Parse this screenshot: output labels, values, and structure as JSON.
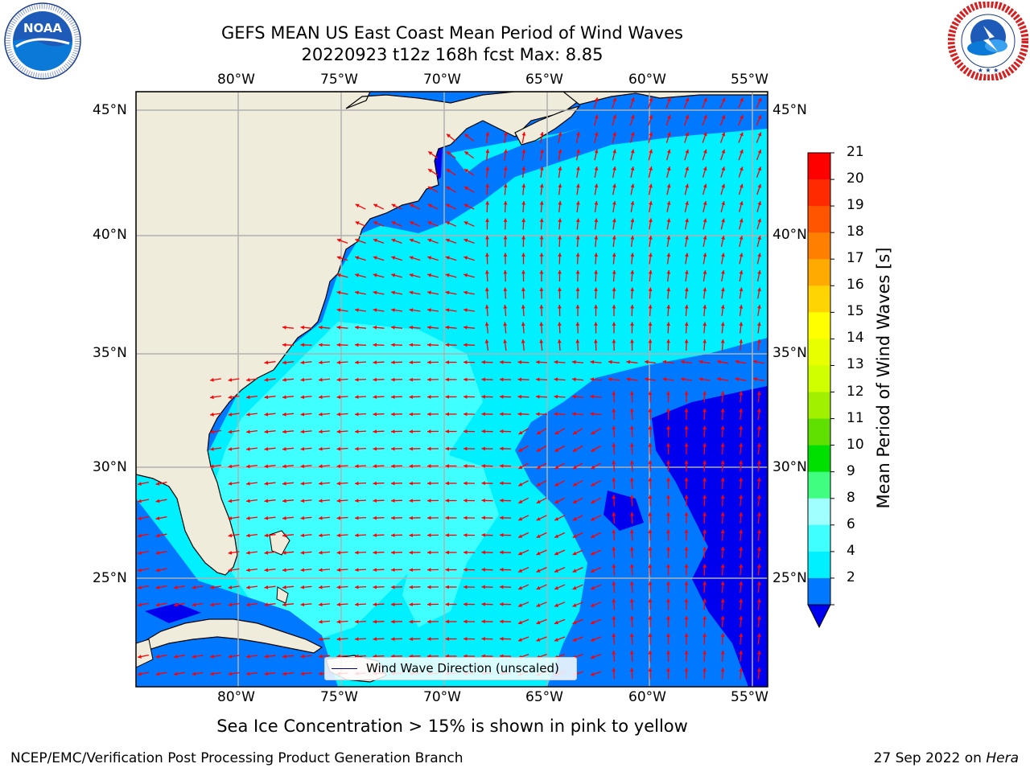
{
  "header": {
    "title": "GEFS MEAN US East Coast Mean Period of Wind Waves",
    "subtitle": "20220923 t12z 168h fcst   Max: 8.85"
  },
  "logos": {
    "left": {
      "name": "noaa-logo",
      "text": "NOAA",
      "ring_text": "NATIONAL OCEANIC AND ATMOSPHERIC ADMINISTRATION · U.S. DEPARTMENT OF COMMERCE"
    },
    "right": {
      "name": "nws-logo",
      "ring_text": "NATIONAL WEATHER SERVICE"
    }
  },
  "map": {
    "lon_labels": [
      "80°W",
      "75°W",
      "70°W",
      "65°W",
      "60°W",
      "55°W"
    ],
    "lat_labels": [
      "45°N",
      "40°N",
      "35°N",
      "30°N",
      "25°N"
    ],
    "legend_label": "Wind Wave Direction (unscaled)",
    "colors": {
      "land": "#efecdc",
      "ocean_0_2": "#0000ee",
      "ocean_2_4": "#0078ff",
      "ocean_4_6": "#00f0ff",
      "ocean_6_8": "#40ffff",
      "arrow": "#ff0000",
      "grid": "#b0b0b0"
    }
  },
  "colorbar": {
    "label": "Mean Period of Wind Waves [s]",
    "ticks": [
      "21",
      "20",
      "19",
      "18",
      "17",
      "16",
      "15",
      "14",
      "13",
      "12",
      "11",
      "10",
      "9",
      "8",
      "6",
      "4",
      "2"
    ],
    "colors": [
      "#ff0000",
      "#ff2a00",
      "#ff5500",
      "#ff7f00",
      "#ffaa00",
      "#ffd400",
      "#ffff00",
      "#e8ff00",
      "#d0ff00",
      "#a0f000",
      "#60e000",
      "#00e000",
      "#40ff80",
      "#a0ffff",
      "#40ffff",
      "#00f0ff",
      "#0078ff"
    ],
    "under_color": "#0000ee"
  },
  "bottom": {
    "sea_ice_note": "Sea Ice Concentration > 15% is shown in pink to yellow"
  },
  "footer": {
    "left": "NCEP/EMC/Verification Post Processing Product Generation Branch",
    "date": "27 Sep 2022 on",
    "machine": "Hera"
  }
}
